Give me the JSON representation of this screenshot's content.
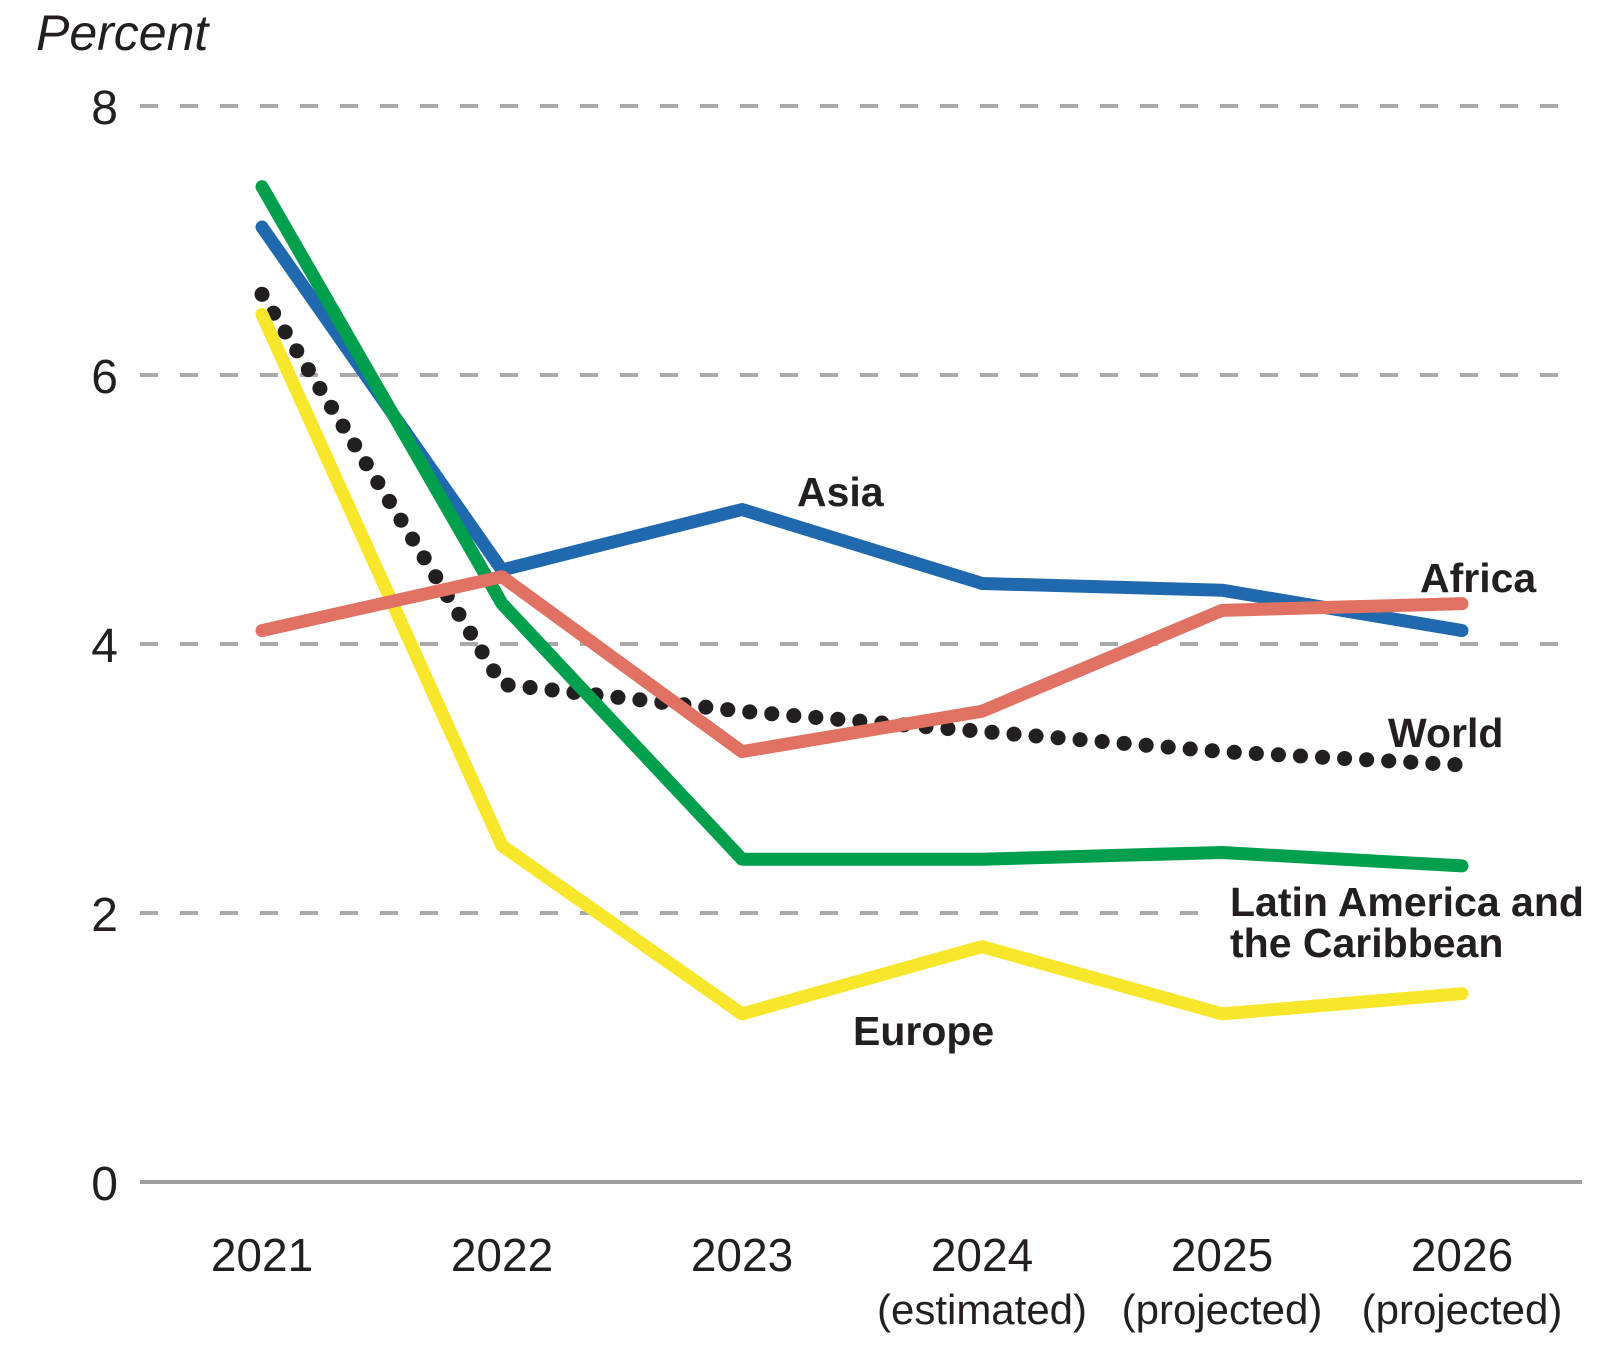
{
  "chart_data": {
    "type": "line",
    "title": "Percent",
    "categories": [
      {
        "label": "2021",
        "sublabel": ""
      },
      {
        "label": "2022",
        "sublabel": ""
      },
      {
        "label": "2023",
        "sublabel": ""
      },
      {
        "label": "2024",
        "sublabel": "(estimated)"
      },
      {
        "label": "2025",
        "sublabel": "(projected)"
      },
      {
        "label": "2026",
        "sublabel": "(projected)"
      }
    ],
    "yticks": [
      8,
      6,
      4,
      2,
      0
    ],
    "ylim": [
      0,
      8
    ],
    "grid": "dashed-horizontal-gridlines",
    "legend_position": "inline-labels-on-lines",
    "series": [
      {
        "id": "asia",
        "name": "Asia",
        "color": "#2169ae",
        "style": "solid",
        "values": [
          7.1,
          4.55,
          5.0,
          4.45,
          4.4,
          4.1
        ]
      },
      {
        "id": "africa",
        "name": "Africa",
        "color": "#e07163",
        "style": "solid",
        "values": [
          4.1,
          4.5,
          3.2,
          3.5,
          4.25,
          4.3
        ]
      },
      {
        "id": "world",
        "name": "World",
        "color": "#231f20",
        "style": "dotted",
        "values": [
          6.6,
          3.7,
          3.5,
          3.35,
          3.2,
          3.1
        ]
      },
      {
        "id": "latam",
        "name": "Latin America and the Caribbean",
        "color": "#009f4d",
        "style": "solid",
        "values": [
          7.4,
          4.3,
          2.4,
          2.4,
          2.45,
          2.35
        ]
      },
      {
        "id": "europe",
        "name": "Europe",
        "color": "#f7e62a",
        "style": "solid",
        "values": [
          6.45,
          2.5,
          1.25,
          1.75,
          1.25,
          1.4
        ]
      }
    ],
    "draw_order": [
      "world",
      "europe",
      "asia",
      "latam",
      "africa"
    ],
    "annotations": {
      "asia": "Asia",
      "africa": "Africa",
      "world": "World",
      "latam_line1": "Latin America and",
      "latam_line2": "the Caribbean",
      "europe": "Europe"
    },
    "colors": {
      "grid": "#a9a9a9",
      "axis": "#9e9e9e",
      "text": "#231f20"
    }
  }
}
